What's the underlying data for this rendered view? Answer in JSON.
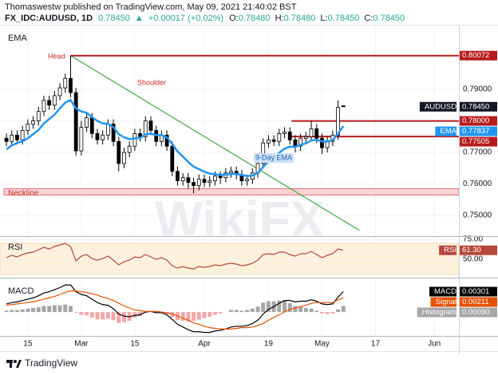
{
  "header": {
    "publisher": "Thomaswestw published on TradingView.com, May 09, 2021 21:40:02 BST",
    "symbol": "FX_IDC:AUDUSD, 1D",
    "price": "0.78450",
    "arrow": "▲",
    "change": "+0.00017 (+0.02%)",
    "ohlc": [
      {
        "key": "O:",
        "value": "0.78480"
      },
      {
        "key": "H:",
        "value": "0.78480"
      },
      {
        "key": "L:",
        "value": "0.78450"
      },
      {
        "key": "C:",
        "value": "0.78450"
      }
    ]
  },
  "chart_data": [
    {
      "type": "candlestick",
      "title": "EMA",
      "name": "AUDUSD",
      "last_label": "0.78450",
      "watermark": "WikiFX",
      "xlim": [
        -1.2,
        84.6
      ],
      "xticks": [
        {
          "value": 4,
          "label": "15"
        },
        {
          "value": 14,
          "label": "Mar"
        },
        {
          "value": 24,
          "label": "15"
        },
        {
          "value": 37,
          "label": "Apr"
        },
        {
          "value": 49,
          "label": "19"
        },
        {
          "value": 59,
          "label": "May"
        },
        {
          "value": 69,
          "label": "17"
        },
        {
          "value": 80,
          "label": "Jun"
        }
      ],
      "ylim": [
        0.7437,
        0.8095
      ],
      "yticks": [
        {
          "value": 0.75,
          "label": "0.75000"
        },
        {
          "value": 0.76,
          "label": "0.76000"
        },
        {
          "value": 0.77,
          "label": "0.77000"
        },
        {
          "value": 0.78,
          "label": "0.78000"
        },
        {
          "value": 0.79,
          "label": "0.79000"
        }
      ],
      "grid": true,
      "up_color": "#ffffff",
      "down_color": "#000000",
      "border_color": "#000000",
      "open": [
        0.7745,
        0.7735,
        0.7755,
        0.774,
        0.777,
        0.779,
        0.78,
        0.783,
        0.7865,
        0.785,
        0.788,
        0.7905,
        0.7935,
        0.789,
        0.7705,
        0.778,
        0.781,
        0.776,
        0.774,
        0.7755,
        0.779,
        0.7735,
        0.7665,
        0.77,
        0.772,
        0.776,
        0.775,
        0.78,
        0.777,
        0.7735,
        0.7755,
        0.772,
        0.764,
        0.761,
        0.762,
        0.7605,
        0.7595,
        0.7615,
        0.7605,
        0.761,
        0.7625,
        0.762,
        0.7635,
        0.764,
        0.763,
        0.761,
        0.7615,
        0.7635,
        0.7665,
        0.773,
        0.774,
        0.7735,
        0.776,
        0.7765,
        0.774,
        0.772,
        0.7745,
        0.775,
        0.7775,
        0.7745,
        0.7715,
        0.7735,
        0.7755,
        0.7848
      ],
      "high": [
        0.776,
        0.777,
        0.777,
        0.7785,
        0.7805,
        0.7815,
        0.7845,
        0.788,
        0.788,
        0.7895,
        0.792,
        0.795,
        0.80072,
        0.7905,
        0.78,
        0.7825,
        0.7825,
        0.7775,
        0.777,
        0.7805,
        0.7805,
        0.775,
        0.7715,
        0.7735,
        0.7775,
        0.7775,
        0.7815,
        0.7815,
        0.7785,
        0.777,
        0.777,
        0.7735,
        0.7655,
        0.7635,
        0.7635,
        0.762,
        0.763,
        0.763,
        0.7625,
        0.764,
        0.764,
        0.765,
        0.7655,
        0.7655,
        0.7645,
        0.763,
        0.765,
        0.768,
        0.7745,
        0.7755,
        0.7755,
        0.7775,
        0.778,
        0.778,
        0.7755,
        0.776,
        0.7765,
        0.78,
        0.779,
        0.776,
        0.775,
        0.777,
        0.7865,
        0.7848
      ],
      "low": [
        0.772,
        0.772,
        0.7725,
        0.7725,
        0.7755,
        0.7775,
        0.7785,
        0.7815,
        0.7835,
        0.7835,
        0.7865,
        0.789,
        0.7875,
        0.769,
        0.769,
        0.7765,
        0.7745,
        0.7725,
        0.7725,
        0.774,
        0.772,
        0.764,
        0.765,
        0.7685,
        0.7705,
        0.7735,
        0.7735,
        0.7755,
        0.772,
        0.772,
        0.7705,
        0.7625,
        0.7595,
        0.7595,
        0.7585,
        0.757,
        0.758,
        0.759,
        0.759,
        0.7595,
        0.76,
        0.7605,
        0.762,
        0.7615,
        0.7595,
        0.7595,
        0.76,
        0.762,
        0.765,
        0.7715,
        0.772,
        0.772,
        0.7745,
        0.7725,
        0.77,
        0.7705,
        0.773,
        0.7735,
        0.773,
        0.7695,
        0.77,
        0.772,
        0.774,
        0.7845
      ],
      "close": [
        0.7735,
        0.7755,
        0.774,
        0.777,
        0.779,
        0.78,
        0.783,
        0.7865,
        0.785,
        0.788,
        0.7905,
        0.7935,
        0.789,
        0.7705,
        0.778,
        0.781,
        0.776,
        0.774,
        0.7755,
        0.779,
        0.7735,
        0.7665,
        0.77,
        0.772,
        0.776,
        0.775,
        0.78,
        0.777,
        0.7735,
        0.7755,
        0.772,
        0.764,
        0.761,
        0.762,
        0.7605,
        0.7595,
        0.7615,
        0.7605,
        0.761,
        0.7625,
        0.762,
        0.7635,
        0.764,
        0.763,
        0.761,
        0.7615,
        0.7635,
        0.7665,
        0.773,
        0.774,
        0.7735,
        0.776,
        0.7765,
        0.774,
        0.772,
        0.7745,
        0.775,
        0.7775,
        0.7745,
        0.7715,
        0.7735,
        0.7755,
        0.7843,
        0.7845
      ],
      "overlays": [
        {
          "name": "EMA",
          "color": "#2196f3",
          "last_label": "0.77837",
          "values": [
            0.771,
            0.7722,
            0.773,
            0.7735,
            0.7745,
            0.7758,
            0.7771,
            0.7792,
            0.7806,
            0.782,
            0.784,
            0.7858,
            0.7866,
            0.784,
            0.783,
            0.7826,
            0.7812,
            0.78,
            0.7792,
            0.7791,
            0.778,
            0.7758,
            0.7748,
            0.7742,
            0.7745,
            0.7746,
            0.7757,
            0.776,
            0.7755,
            0.7755,
            0.7748,
            0.7727,
            0.7703,
            0.7687,
            0.767,
            0.7655,
            0.7647,
            0.7639,
            0.7633,
            0.7631,
            0.7629,
            0.763,
            0.7632,
            0.7632,
            0.7628,
            0.7625,
            0.7627,
            0.7635,
            0.7654,
            0.7671,
            0.7684,
            0.7699,
            0.7712,
            0.7718,
            0.7718,
            0.7724,
            0.7729,
            0.7738,
            0.774,
            0.7735,
            0.7735,
            0.7739,
            0.776,
            0.77837
          ]
        }
      ],
      "levels": [
        {
          "value": 0.80072,
          "label": "0.80072",
          "x": 12,
          "color": "#b71c1c"
        },
        {
          "value": 0.78,
          "label": "0.78000",
          "x": 53.3,
          "color": "#b71c1c"
        },
        {
          "value": 0.77505,
          "label": "0.77505",
          "x": 53.3,
          "color": "#b71c1c"
        }
      ],
      "neckline": {
        "label": "Neckline",
        "low": 0.7565,
        "high": 0.7585,
        "color": "#e57373"
      },
      "trendline": {
        "x": [
          12,
          66
        ],
        "y": [
          0.80072,
          0.7453
        ],
        "color": "#4caf50"
      },
      "annotations": [
        "Head",
        "Shoulder",
        "9-Day EMA"
      ]
    },
    {
      "type": "line",
      "title": "RSI",
      "ylim": [
        30,
        78
      ],
      "yticks": [
        {
          "value": 75,
          "label": "75.00"
        },
        {
          "value": 50,
          "label": "50.00"
        }
      ],
      "band": [
        30,
        70
      ],
      "band_color": "#fdf1dc",
      "series": [
        {
          "name": "RSI",
          "color": "#b5483a",
          "last_label": "61.30",
          "values": [
            52,
            55,
            53,
            56,
            58,
            59,
            62,
            65,
            63,
            66,
            68,
            70,
            66,
            48,
            54,
            56,
            51,
            49,
            51,
            54,
            49,
            43,
            47,
            49,
            53,
            52,
            56,
            53,
            50,
            52,
            49,
            42,
            39,
            41,
            39,
            38,
            41,
            40,
            41,
            43,
            42,
            44,
            45,
            44,
            42,
            43,
            45,
            49,
            56,
            57,
            56,
            59,
            59,
            56,
            54,
            57,
            57,
            60,
            56,
            52,
            55,
            57,
            63,
            61.3
          ]
        }
      ]
    },
    {
      "type": "line",
      "title": "MACD",
      "ylim": [
        -0.0034,
        0.0046
      ],
      "series": [
        {
          "name": "Histogram",
          "type": "bar",
          "color": "#a6a6a6",
          "negative_color": "#f4a6a6",
          "last_label": "0.00090",
          "values": [
            0.0002,
            0.0003,
            0.0003,
            0.0004,
            0.0005,
            0.0006,
            0.0007,
            0.0009,
            0.0009,
            0.001,
            0.001,
            0.0011,
            0.0009,
            -0.0001,
            -0.0004,
            -0.0005,
            -0.0008,
            -0.0011,
            -0.0011,
            -0.001,
            -0.0012,
            -0.0016,
            -0.0015,
            -0.0013,
            -0.0008,
            -0.0006,
            -0.0001,
            0,
            -0.0002,
            -0.0001,
            -0.0003,
            -0.0008,
            -0.0012,
            -0.0013,
            -0.0014,
            -0.0013,
            -0.0011,
            -0.0009,
            -0.0007,
            -0.0004,
            -0.0002,
            0,
            0.0003,
            0.0003,
            0.0002,
            0.0003,
            0.0005,
            0.0008,
            0.0014,
            0.0016,
            0.0016,
            0.0017,
            0.0017,
            0.0013,
            0.0009,
            0.0008,
            0.0006,
            0.0005,
            0.0002,
            -0.0002,
            -0.0003,
            -0.0002,
            0.0004,
            0.0009
          ]
        },
        {
          "name": "MACD",
          "color": "#000000",
          "last_label": "0.00301",
          "values": [
            0.0012,
            0.0014,
            0.0015,
            0.0017,
            0.0019,
            0.0021,
            0.0024,
            0.0028,
            0.003,
            0.0033,
            0.0036,
            0.004,
            0.004,
            0.003,
            0.0026,
            0.0024,
            0.0019,
            0.0014,
            0.0011,
            0.001,
            0.0005,
            -0.0003,
            -0.0006,
            -0.0007,
            -0.0005,
            -0.0004,
            0,
            0.0001,
            -0.0001,
            -0.0001,
            -0.0004,
            -0.0011,
            -0.0018,
            -0.0022,
            -0.0026,
            -0.0029,
            -0.0029,
            -0.003,
            -0.003,
            -0.0028,
            -0.0027,
            -0.0025,
            -0.0022,
            -0.0021,
            -0.0021,
            -0.002,
            -0.0017,
            -0.0012,
            -0.0003,
            0.0004,
            0.0008,
            0.0013,
            0.0017,
            0.0017,
            0.0015,
            0.0016,
            0.0016,
            0.0018,
            0.0016,
            0.0012,
            0.0011,
            0.0012,
            0.0022,
            0.00301
          ]
        },
        {
          "name": "Signal",
          "color": "#e65100",
          "last_label": "0.00211",
          "values": [
            0.001,
            0.0011,
            0.0012,
            0.0013,
            0.0014,
            0.0015,
            0.0017,
            0.0019,
            0.0021,
            0.0023,
            0.0026,
            0.0029,
            0.0031,
            0.0031,
            0.003,
            0.0029,
            0.0027,
            0.0025,
            0.0022,
            0.002,
            0.0017,
            0.0013,
            0.0009,
            0.0006,
            0.0003,
            0.0002,
            0.0001,
            0.0001,
            0.0001,
            0,
            -0.0001,
            -0.0003,
            -0.0006,
            -0.0009,
            -0.0012,
            -0.0016,
            -0.0018,
            -0.0021,
            -0.0023,
            -0.0024,
            -0.0025,
            -0.0025,
            -0.0025,
            -0.0024,
            -0.0023,
            -0.0023,
            -0.0022,
            -0.002,
            -0.0017,
            -0.0012,
            -0.0008,
            -0.0004,
            0,
            0.0004,
            0.0006,
            0.0008,
            0.001,
            0.0013,
            0.0014,
            0.0014,
            0.0014,
            0.0014,
            0.0018,
            0.00211
          ]
        }
      ]
    }
  ],
  "footer": {
    "brand": "TradingView"
  }
}
